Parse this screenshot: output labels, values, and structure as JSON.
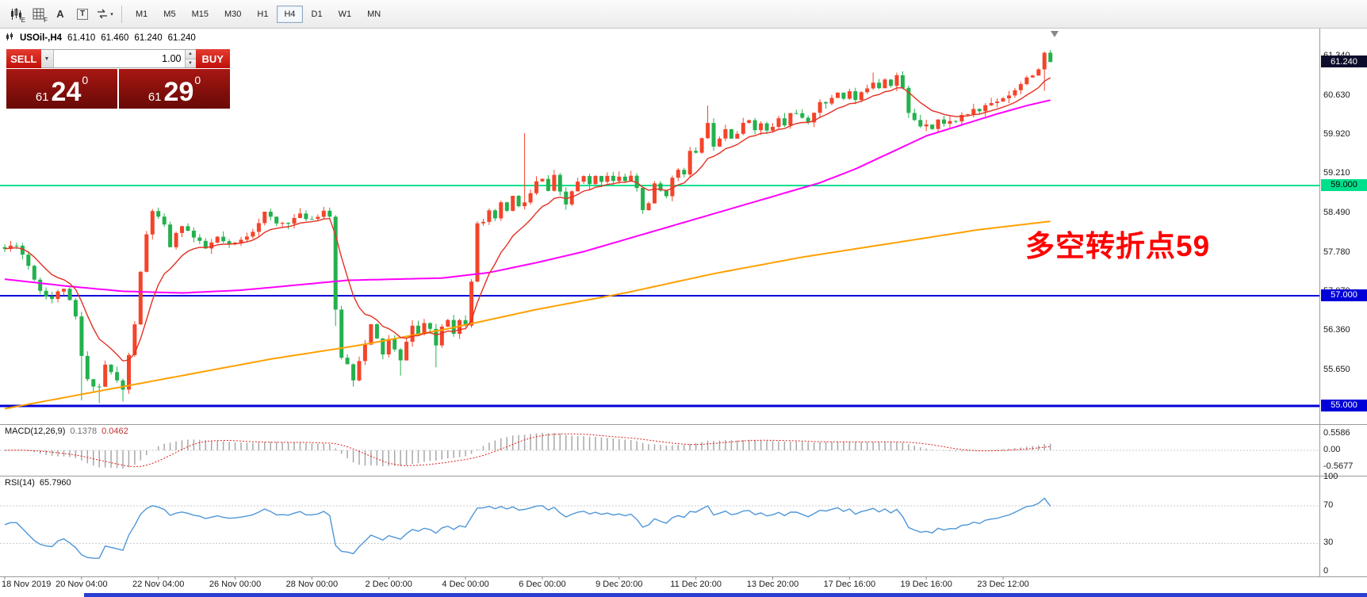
{
  "toolbar": {
    "icons": [
      {
        "name": "candlesticks-icon",
        "sub": "E"
      },
      {
        "name": "grid-icon",
        "sub": "F"
      },
      {
        "name": "text-a-icon"
      },
      {
        "name": "text-label-icon"
      },
      {
        "name": "period-cycle-icon",
        "caret": true
      }
    ],
    "timeframes": [
      {
        "label": "M1"
      },
      {
        "label": "M5"
      },
      {
        "label": "M15"
      },
      {
        "label": "M30"
      },
      {
        "label": "H1"
      },
      {
        "label": "H4",
        "active": true
      },
      {
        "label": "D1"
      },
      {
        "label": "W1"
      },
      {
        "label": "MN"
      }
    ]
  },
  "symbol_header": {
    "symbol": "USOil-,H4",
    "open": "61.410",
    "high": "61.460",
    "low": "61.240",
    "close": "61.240"
  },
  "trade_panel": {
    "sell_label": "SELL",
    "buy_label": "BUY",
    "volume": "1.00",
    "sell": {
      "small": "61",
      "large": "24",
      "sup": "0"
    },
    "buy": {
      "small": "61",
      "large": "29",
      "sup": "0"
    }
  },
  "annotation": {
    "text": "多空转折点59",
    "color": "#ff0000"
  },
  "chart_data": {
    "type": "candlestick",
    "symbol": "USOil-",
    "timeframe": "H4",
    "last_ohlc": {
      "open": 61.41,
      "high": 61.46,
      "low": 61.24,
      "close": 61.24
    },
    "colors": {
      "up": "#f4442a",
      "down": "#23b14d",
      "ma_fast": "#e33022",
      "ma_mid": "#ff00ff",
      "ma_slow": "#ffa000",
      "macd_hist": "#a8a8a8",
      "macd_signal": "#e02020",
      "rsi": "#4f96d8",
      "level_green": "#00e08c",
      "level_blue": "#0000d8",
      "current_bg": "#0d0d2b"
    },
    "y_axis": {
      "ticks": [
        "61.340",
        "60.630",
        "59.920",
        "59.210",
        "58.490",
        "57.780",
        "57.070",
        "56.360",
        "55.650"
      ],
      "current": {
        "label": "61.240",
        "price": 61.24
      },
      "levels": [
        {
          "label": "59.000",
          "price": 59.0,
          "color": "#00e08c",
          "text": "#000000",
          "width": 2
        },
        {
          "label": "57.000",
          "price": 57.0,
          "color": "#0000d8",
          "text": "#ffffff",
          "width": 2
        },
        {
          "label": "55.000",
          "price": 55.0,
          "color": "#0000d8",
          "text": "#ffffff",
          "width": 3
        }
      ]
    },
    "x_axis": {
      "labels": [
        {
          "i": 0,
          "t": "18 Nov 2019"
        },
        {
          "i": 13,
          "t": "20 Nov 04:00"
        },
        {
          "i": 26,
          "t": "22 Nov 04:00"
        },
        {
          "i": 39,
          "t": "26 Nov 00:00"
        },
        {
          "i": 52,
          "t": "28 Nov 00:00"
        },
        {
          "i": 65,
          "t": "2 Dec 00:00"
        },
        {
          "i": 78,
          "t": "4 Dec 00:00"
        },
        {
          "i": 91,
          "t": "6 Dec 00:00"
        },
        {
          "i": 104,
          "t": "9 Dec 20:00"
        },
        {
          "i": 117,
          "t": "11 Dec 20:00"
        },
        {
          "i": 130,
          "t": "13 Dec 20:00"
        },
        {
          "i": 143,
          "t": "17 Dec 16:00"
        },
        {
          "i": 156,
          "t": "19 Dec 16:00"
        },
        {
          "i": 169,
          "t": "23 Dec 12:00"
        }
      ]
    },
    "num_candles": 178,
    "price_path": [
      [
        0,
        57.85
      ],
      [
        2,
        57.95
      ],
      [
        4,
        57.55
      ],
      [
        6,
        57.1
      ],
      [
        8,
        56.95
      ],
      [
        10,
        57.15
      ],
      [
        12,
        56.6
      ],
      [
        13,
        55.9
      ],
      [
        14,
        55.45
      ],
      [
        16,
        55.35
      ],
      [
        17,
        55.75
      ],
      [
        19,
        55.45
      ],
      [
        20,
        55.3
      ],
      [
        21,
        55.9
      ],
      [
        22,
        56.5
      ],
      [
        23,
        57.4
      ],
      [
        24,
        58.1
      ],
      [
        25,
        58.55
      ],
      [
        27,
        58.25
      ],
      [
        28,
        57.9
      ],
      [
        30,
        58.3
      ],
      [
        32,
        58.05
      ],
      [
        34,
        57.85
      ],
      [
        36,
        58.05
      ],
      [
        38,
        57.9
      ],
      [
        40,
        58.0
      ],
      [
        42,
        58.2
      ],
      [
        44,
        58.5
      ],
      [
        46,
        58.3
      ],
      [
        48,
        58.35
      ],
      [
        50,
        58.45
      ],
      [
        52,
        58.4
      ],
      [
        54,
        58.55
      ],
      [
        55,
        58.45
      ],
      [
        56,
        56.7
      ],
      [
        57,
        55.9
      ],
      [
        58,
        55.75
      ],
      [
        59,
        55.5
      ],
      [
        60,
        55.85
      ],
      [
        61,
        56.1
      ],
      [
        62,
        56.45
      ],
      [
        63,
        56.2
      ],
      [
        64,
        55.95
      ],
      [
        65,
        56.2
      ],
      [
        66,
        56.0
      ],
      [
        67,
        55.8
      ],
      [
        68,
        56.2
      ],
      [
        69,
        56.45
      ],
      [
        70,
        56.3
      ],
      [
        71,
        56.5
      ],
      [
        72,
        56.35
      ],
      [
        73,
        56.1
      ],
      [
        74,
        56.45
      ],
      [
        75,
        56.6
      ],
      [
        76,
        56.35
      ],
      [
        77,
        56.55
      ],
      [
        78,
        56.5
      ],
      [
        79,
        57.3
      ],
      [
        80,
        58.35
      ],
      [
        81,
        58.3
      ],
      [
        82,
        58.5
      ],
      [
        83,
        58.4
      ],
      [
        84,
        58.65
      ],
      [
        85,
        58.55
      ],
      [
        86,
        58.8
      ],
      [
        87,
        58.6
      ],
      [
        88,
        58.7
      ],
      [
        89,
        58.85
      ],
      [
        90,
        59.05
      ],
      [
        91,
        59.1
      ],
      [
        92,
        58.9
      ],
      [
        93,
        59.15
      ],
      [
        94,
        58.85
      ],
      [
        95,
        58.65
      ],
      [
        96,
        58.9
      ],
      [
        97,
        59.05
      ],
      [
        98,
        59.15
      ],
      [
        99,
        59.0
      ],
      [
        100,
        59.15
      ],
      [
        101,
        59.1
      ],
      [
        102,
        59.2
      ],
      [
        103,
        59.1
      ],
      [
        104,
        59.15
      ],
      [
        105,
        59.05
      ],
      [
        106,
        59.2
      ],
      [
        107,
        58.95
      ],
      [
        108,
        58.55
      ],
      [
        109,
        58.7
      ],
      [
        110,
        59.0
      ],
      [
        111,
        58.9
      ],
      [
        112,
        58.85
      ],
      [
        113,
        59.1
      ],
      [
        114,
        59.3
      ],
      [
        115,
        59.25
      ],
      [
        116,
        59.6
      ],
      [
        117,
        59.55
      ],
      [
        118,
        59.9
      ],
      [
        119,
        60.1
      ],
      [
        120,
        59.75
      ],
      [
        121,
        59.9
      ],
      [
        122,
        60.05
      ],
      [
        123,
        59.9
      ],
      [
        124,
        59.95
      ],
      [
        125,
        60.1
      ],
      [
        126,
        60.2
      ],
      [
        127,
        60.05
      ],
      [
        128,
        60.1
      ],
      [
        129,
        60.0
      ],
      [
        130,
        60.05
      ],
      [
        131,
        60.2
      ],
      [
        132,
        60.1
      ],
      [
        133,
        60.3
      ],
      [
        134,
        60.35
      ],
      [
        135,
        60.2
      ],
      [
        136,
        60.1
      ],
      [
        137,
        60.35
      ],
      [
        138,
        60.55
      ],
      [
        139,
        60.45
      ],
      [
        140,
        60.6
      ],
      [
        141,
        60.7
      ],
      [
        142,
        60.6
      ],
      [
        143,
        60.7
      ],
      [
        144,
        60.55
      ],
      [
        145,
        60.65
      ],
      [
        146,
        60.8
      ],
      [
        147,
        60.9
      ],
      [
        148,
        60.8
      ],
      [
        149,
        60.95
      ],
      [
        150,
        60.85
      ],
      [
        151,
        61.0
      ],
      [
        152,
        60.75
      ],
      [
        153,
        60.3
      ],
      [
        154,
        60.2
      ],
      [
        155,
        60.1
      ],
      [
        156,
        60.15
      ],
      [
        157,
        60.05
      ],
      [
        158,
        60.2
      ],
      [
        159,
        60.1
      ],
      [
        160,
        60.2
      ],
      [
        161,
        60.15
      ],
      [
        162,
        60.3
      ],
      [
        163,
        60.25
      ],
      [
        164,
        60.4
      ],
      [
        165,
        60.35
      ],
      [
        166,
        60.45
      ],
      [
        167,
        60.5
      ],
      [
        168,
        60.55
      ],
      [
        169,
        60.6
      ],
      [
        170,
        60.65
      ],
      [
        171,
        60.75
      ],
      [
        172,
        60.85
      ],
      [
        173,
        61.0
      ],
      [
        174,
        60.95
      ],
      [
        175,
        61.1
      ],
      [
        176,
        61.41
      ],
      [
        177,
        61.24
      ]
    ],
    "wick_overrides": {
      "13": {
        "l": 55.1
      },
      "16": {
        "l": 55.05
      },
      "20": {
        "l": 55.08
      },
      "56": {
        "l": 56.45
      },
      "59": {
        "l": 55.35
      },
      "67": {
        "l": 55.55
      },
      "73": {
        "l": 55.7
      },
      "88": {
        "h": 59.95
      },
      "119": {
        "h": 60.45
      },
      "147": {
        "h": 61.05
      },
      "151": {
        "h": 61.05
      },
      "176": {
        "c": 61.41,
        "h": 61.43,
        "l": 60.72
      },
      "177": {
        "o": 61.41,
        "h": 61.46,
        "l": 61.24,
        "c": 61.24
      }
    },
    "ma_fast_period": 10,
    "ma_mid_path": [
      [
        0,
        57.3
      ],
      [
        10,
        57.18
      ],
      [
        20,
        57.08
      ],
      [
        30,
        57.05
      ],
      [
        40,
        57.1
      ],
      [
        50,
        57.2
      ],
      [
        58,
        57.28
      ],
      [
        66,
        57.3
      ],
      [
        74,
        57.32
      ],
      [
        82,
        57.42
      ],
      [
        90,
        57.6
      ],
      [
        98,
        57.8
      ],
      [
        106,
        58.05
      ],
      [
        114,
        58.3
      ],
      [
        122,
        58.55
      ],
      [
        130,
        58.8
      ],
      [
        138,
        59.05
      ],
      [
        144,
        59.3
      ],
      [
        150,
        59.6
      ],
      [
        156,
        59.9
      ],
      [
        162,
        60.1
      ],
      [
        168,
        60.3
      ],
      [
        173,
        60.45
      ],
      [
        177,
        60.55
      ]
    ],
    "ma_slow_path": [
      [
        0,
        54.95
      ],
      [
        15,
        55.25
      ],
      [
        30,
        55.55
      ],
      [
        45,
        55.85
      ],
      [
        60,
        56.1
      ],
      [
        75,
        56.4
      ],
      [
        90,
        56.75
      ],
      [
        105,
        57.05
      ],
      [
        120,
        57.4
      ],
      [
        135,
        57.7
      ],
      [
        150,
        57.95
      ],
      [
        165,
        58.2
      ],
      [
        177,
        58.35
      ]
    ],
    "macd": {
      "title": "MACD(12,26,9)",
      "main": "0.1378",
      "signal": "0.0462",
      "scale": [
        "0.5586",
        "0.00",
        "-0.5677"
      ]
    },
    "rsi": {
      "title": "RSI(14)",
      "value": "65.7960",
      "scale": [
        "100",
        "70",
        "30",
        "0"
      ],
      "levels": [
        70,
        30
      ]
    }
  }
}
